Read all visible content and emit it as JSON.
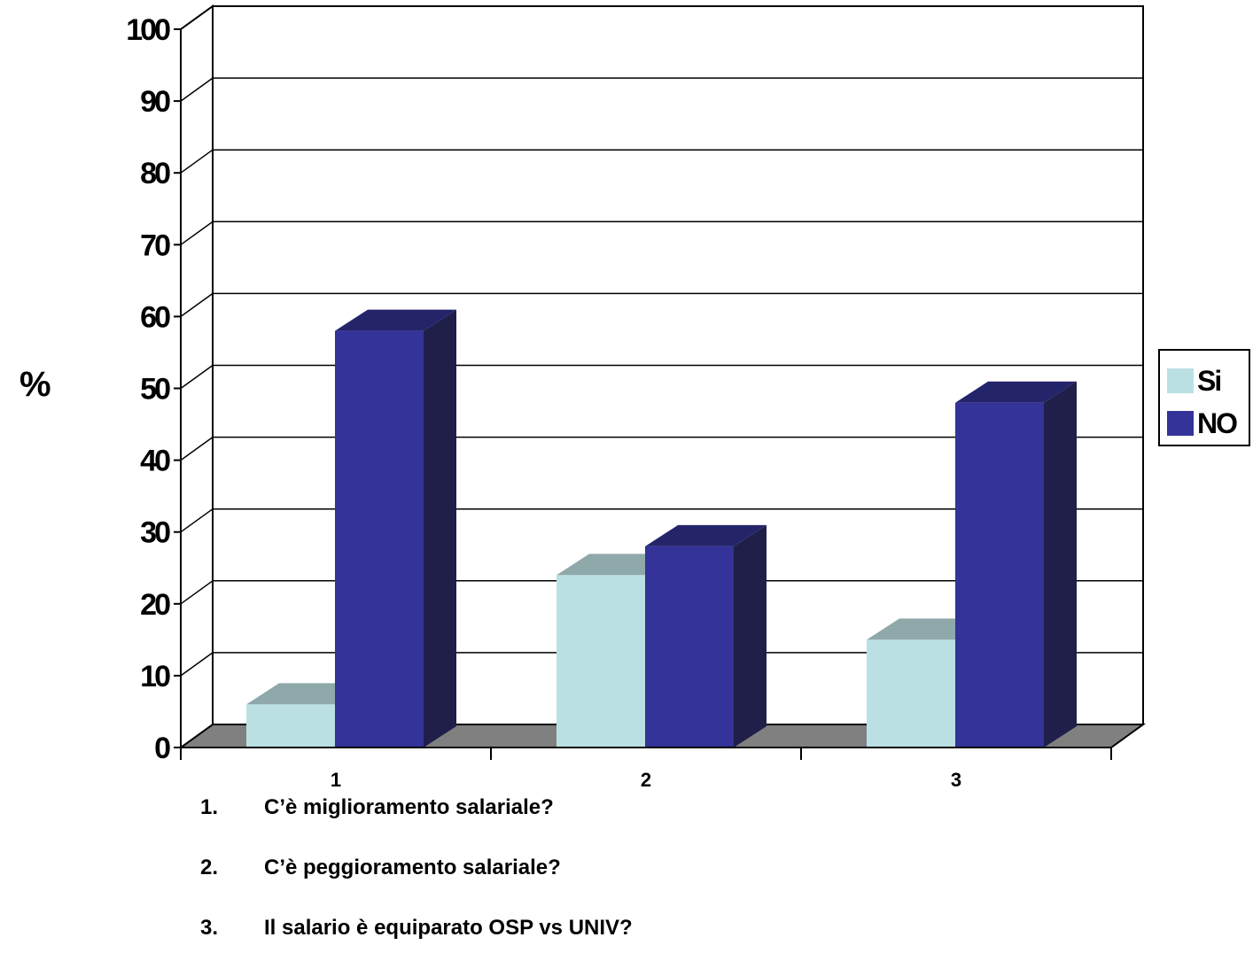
{
  "chart_data": {
    "type": "bar",
    "ylabel": "%",
    "ylim": [
      0,
      100
    ],
    "yticks": [
      "0",
      "10",
      "20",
      "30",
      "40",
      "50",
      "60",
      "70",
      "80",
      "90",
      "100"
    ],
    "categories": [
      "1",
      "2",
      "3"
    ],
    "series": [
      {
        "name": "Si",
        "values": [
          6,
          24,
          15
        ],
        "color": "#bbe0e3",
        "top_color": "#8fa8aa",
        "side_color": "#8fa8aa"
      },
      {
        "name": "NO",
        "values": [
          58,
          28,
          48
        ],
        "color": "#333399",
        "top_color": "#24246b",
        "side_color": "#1f1f4a"
      }
    ],
    "grid": true,
    "legend_position": "right",
    "floor_color": "#808080"
  },
  "notes": [
    {
      "num": "1.",
      "text": "C’è miglioramento salariale?"
    },
    {
      "num": "2.",
      "text": "C’è peggioramento salariale?"
    },
    {
      "num": "3.",
      "text": "Il salario è equiparato OSP vs UNIV?"
    }
  ]
}
